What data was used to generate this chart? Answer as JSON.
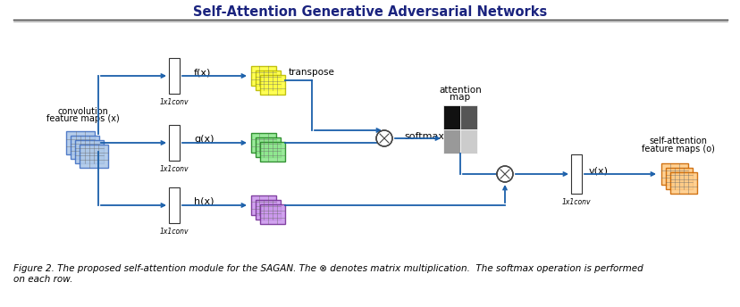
{
  "title": "Self-Attention Generative Adversarial Networks",
  "title_fontsize": 10.5,
  "caption_line1": "Figure 2. The proposed self-attention module for the SAGAN. The ⊗ denotes matrix multiplication.  The softmax operation is performed",
  "caption_line2": "on each row.",
  "caption_fontsize": 7.5,
  "bg_color": "#ffffff",
  "arrow_color": "#1a5faa",
  "text_color": "#000000",
  "conv_color": "#6baed6",
  "conv_face": "#aec8e8",
  "yellow_color": "#ffff44",
  "yellow_edge": "#bbbb00",
  "green_color": "#90e890",
  "green_edge": "#228822",
  "purple_color": "#cc99ee",
  "purple_edge": "#773399",
  "orange_color": "#ffcc88",
  "orange_edge": "#cc6600",
  "attn_colors": [
    [
      "#111111",
      "#555555"
    ],
    [
      "#999999",
      "#cccccc"
    ]
  ],
  "title_color": "#1a237e"
}
